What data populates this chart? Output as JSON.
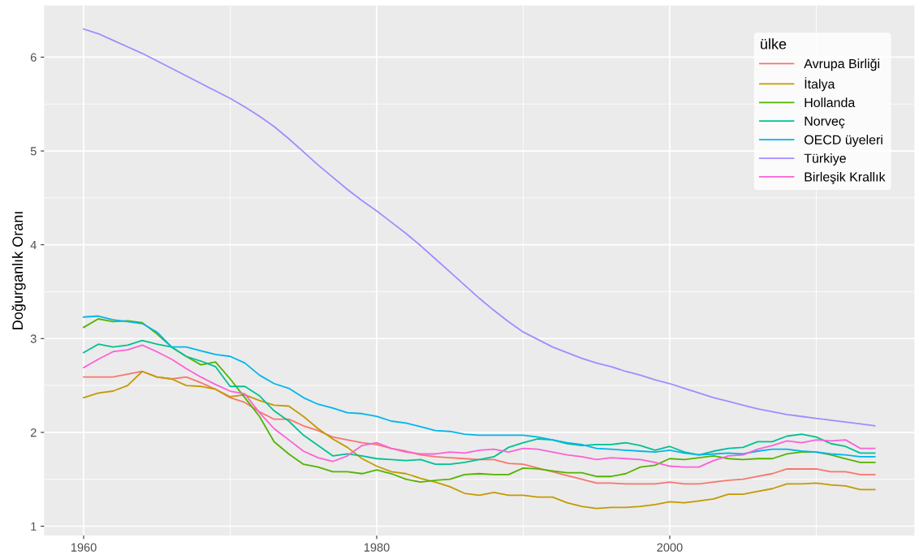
{
  "chart_data": {
    "type": "line",
    "ylabel": "Doğurganlık Oranı",
    "legend_title": "ülke",
    "legend": "top right",
    "grid": true,
    "xlim": [
      1957.3,
      2016.7
    ],
    "xticks": [
      1960,
      1980,
      2000
    ],
    "ylim": [
      0.9,
      6.55
    ],
    "yticks": [
      1,
      2,
      3,
      4,
      5,
      6
    ],
    "x": [
      1960,
      1961,
      1962,
      1963,
      1964,
      1965,
      1966,
      1967,
      1968,
      1969,
      1970,
      1971,
      1972,
      1973,
      1974,
      1975,
      1976,
      1977,
      1978,
      1979,
      1980,
      1981,
      1982,
      1983,
      1984,
      1985,
      1986,
      1987,
      1988,
      1989,
      1990,
      1991,
      1992,
      1993,
      1994,
      1995,
      1996,
      1997,
      1998,
      1999,
      2000,
      2001,
      2002,
      2003,
      2004,
      2005,
      2006,
      2007,
      2008,
      2009,
      2010,
      2011,
      2012,
      2013,
      2014
    ],
    "series": [
      {
        "name": "Avrupa Birliği",
        "color": "#f8766d",
        "values": [
          2.59,
          2.59,
          2.59,
          2.62,
          2.65,
          2.59,
          2.57,
          2.59,
          2.53,
          2.46,
          2.37,
          2.32,
          2.22,
          2.14,
          2.14,
          2.07,
          2.02,
          1.95,
          1.92,
          1.89,
          1.87,
          1.83,
          1.8,
          1.76,
          1.74,
          1.73,
          1.72,
          1.71,
          1.71,
          1.67,
          1.66,
          1.62,
          1.58,
          1.54,
          1.5,
          1.46,
          1.46,
          1.45,
          1.45,
          1.45,
          1.47,
          1.45,
          1.45,
          1.47,
          1.49,
          1.5,
          1.53,
          1.56,
          1.61,
          1.61,
          1.61,
          1.58,
          1.58,
          1.55,
          1.55
        ]
      },
      {
        "name": "İtalya",
        "color": "#c49a00",
        "values": [
          2.37,
          2.42,
          2.44,
          2.5,
          2.65,
          2.59,
          2.57,
          2.5,
          2.49,
          2.46,
          2.38,
          2.4,
          2.34,
          2.29,
          2.28,
          2.17,
          2.04,
          1.93,
          1.84,
          1.72,
          1.64,
          1.58,
          1.56,
          1.51,
          1.47,
          1.42,
          1.35,
          1.33,
          1.36,
          1.33,
          1.33,
          1.31,
          1.31,
          1.25,
          1.21,
          1.19,
          1.2,
          1.2,
          1.21,
          1.23,
          1.26,
          1.25,
          1.27,
          1.29,
          1.34,
          1.34,
          1.37,
          1.4,
          1.45,
          1.45,
          1.46,
          1.44,
          1.43,
          1.39,
          1.39
        ]
      },
      {
        "name": "Hollanda",
        "color": "#53b400",
        "values": [
          3.12,
          3.21,
          3.18,
          3.19,
          3.17,
          3.05,
          2.91,
          2.81,
          2.72,
          2.75,
          2.57,
          2.37,
          2.17,
          1.9,
          1.77,
          1.66,
          1.63,
          1.58,
          1.58,
          1.56,
          1.6,
          1.56,
          1.5,
          1.47,
          1.49,
          1.5,
          1.55,
          1.56,
          1.55,
          1.55,
          1.62,
          1.61,
          1.59,
          1.57,
          1.57,
          1.53,
          1.53,
          1.56,
          1.63,
          1.65,
          1.72,
          1.71,
          1.73,
          1.75,
          1.72,
          1.71,
          1.72,
          1.72,
          1.77,
          1.79,
          1.79,
          1.76,
          1.72,
          1.68,
          1.68
        ]
      },
      {
        "name": "Norveç",
        "color": "#00c094",
        "values": [
          2.85,
          2.94,
          2.91,
          2.93,
          2.98,
          2.94,
          2.91,
          2.81,
          2.76,
          2.7,
          2.49,
          2.49,
          2.39,
          2.23,
          2.12,
          1.97,
          1.86,
          1.75,
          1.77,
          1.75,
          1.72,
          1.71,
          1.7,
          1.71,
          1.66,
          1.66,
          1.68,
          1.71,
          1.74,
          1.84,
          1.89,
          1.93,
          1.92,
          1.88,
          1.86,
          1.87,
          1.87,
          1.89,
          1.86,
          1.81,
          1.85,
          1.79,
          1.76,
          1.8,
          1.83,
          1.84,
          1.9,
          1.9,
          1.96,
          1.98,
          1.95,
          1.88,
          1.85,
          1.78,
          1.78
        ]
      },
      {
        "name": "OECD üyeleri",
        "color": "#00b6eb",
        "values": [
          3.23,
          3.24,
          3.2,
          3.18,
          3.16,
          3.07,
          2.91,
          2.91,
          2.87,
          2.83,
          2.81,
          2.74,
          2.61,
          2.52,
          2.47,
          2.37,
          2.3,
          2.26,
          2.21,
          2.2,
          2.17,
          2.12,
          2.1,
          2.06,
          2.02,
          2.01,
          1.98,
          1.97,
          1.97,
          1.97,
          1.97,
          1.95,
          1.92,
          1.89,
          1.87,
          1.83,
          1.82,
          1.81,
          1.8,
          1.79,
          1.81,
          1.78,
          1.76,
          1.77,
          1.78,
          1.77,
          1.8,
          1.82,
          1.82,
          1.8,
          1.79,
          1.77,
          1.76,
          1.74,
          1.74
        ]
      },
      {
        "name": "Türkiye",
        "color": "#a58aff",
        "values": [
          6.3,
          6.25,
          6.18,
          6.11,
          6.04,
          5.96,
          5.88,
          5.8,
          5.72,
          5.64,
          5.56,
          5.47,
          5.37,
          5.26,
          5.13,
          4.99,
          4.85,
          4.72,
          4.59,
          4.47,
          4.36,
          4.24,
          4.12,
          3.99,
          3.85,
          3.71,
          3.57,
          3.43,
          3.3,
          3.18,
          3.07,
          2.99,
          2.91,
          2.85,
          2.79,
          2.74,
          2.7,
          2.65,
          2.61,
          2.56,
          2.52,
          2.47,
          2.42,
          2.37,
          2.33,
          2.29,
          2.25,
          2.22,
          2.19,
          2.17,
          2.15,
          2.13,
          2.11,
          2.09,
          2.07
        ]
      },
      {
        "name": "Birleşik Krallık",
        "color": "#fb61d7",
        "values": [
          2.69,
          2.78,
          2.86,
          2.88,
          2.93,
          2.86,
          2.78,
          2.68,
          2.59,
          2.51,
          2.44,
          2.41,
          2.21,
          2.04,
          1.92,
          1.8,
          1.73,
          1.69,
          1.75,
          1.86,
          1.89,
          1.83,
          1.79,
          1.77,
          1.77,
          1.79,
          1.78,
          1.81,
          1.82,
          1.79,
          1.83,
          1.82,
          1.79,
          1.76,
          1.74,
          1.71,
          1.73,
          1.72,
          1.71,
          1.68,
          1.64,
          1.63,
          1.63,
          1.7,
          1.75,
          1.76,
          1.82,
          1.86,
          1.91,
          1.89,
          1.92,
          1.91,
          1.92,
          1.83,
          1.83
        ]
      }
    ]
  }
}
